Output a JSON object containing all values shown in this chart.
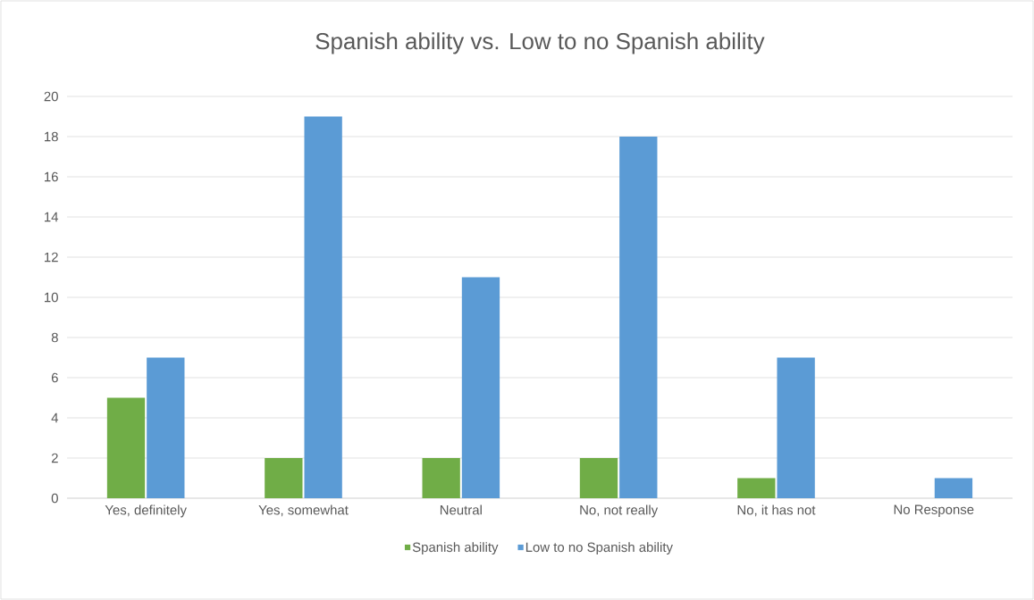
{
  "chart_data": {
    "type": "bar",
    "title": "Spanish ability vs. Low to no Spanish ability",
    "categories": [
      "Yes, definitely",
      "Yes, somewhat",
      "Neutral",
      "No, not really",
      "No, it has not",
      "No Response"
    ],
    "series": [
      {
        "name": "Spanish ability",
        "color": "#70ad47",
        "values": [
          5,
          2,
          2,
          2,
          1,
          0
        ]
      },
      {
        "name": "Low to no Spanish ability",
        "color": "#5b9bd5",
        "values": [
          7,
          19,
          11,
          18,
          7,
          1
        ]
      }
    ],
    "ylim": [
      0,
      20
    ],
    "yticks": [
      0,
      2,
      4,
      6,
      8,
      10,
      12,
      14,
      16,
      18,
      20
    ],
    "grid": "y",
    "legend": "bottom"
  }
}
